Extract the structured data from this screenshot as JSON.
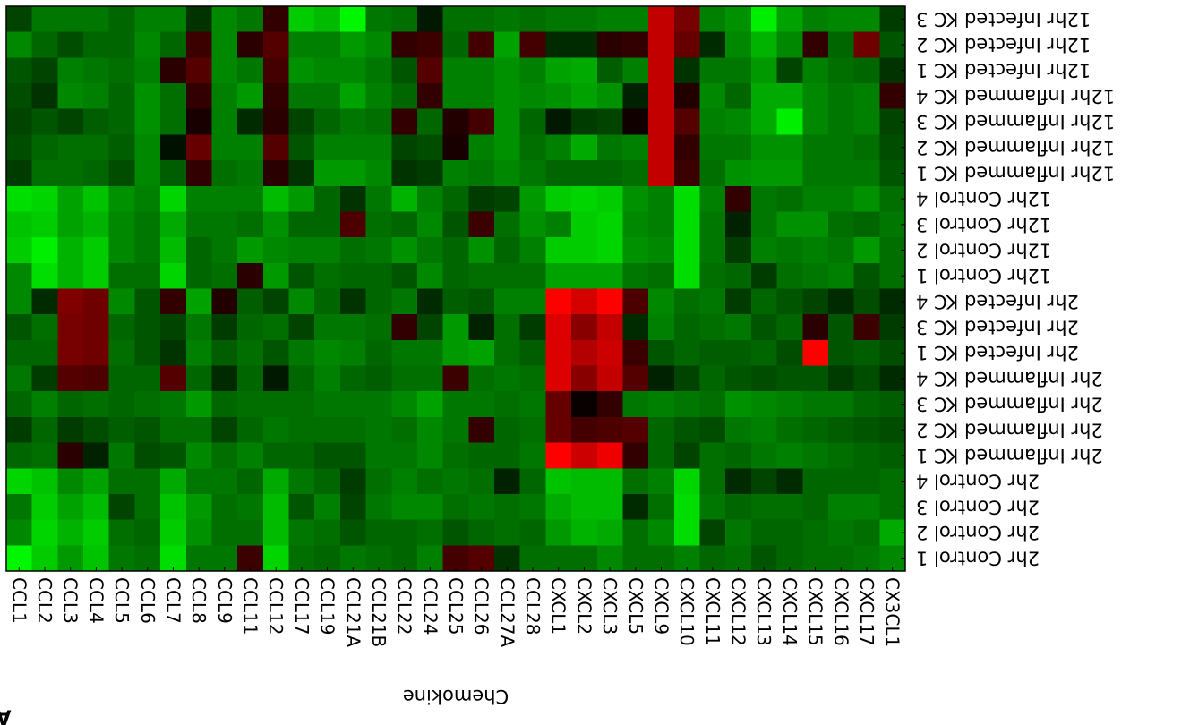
{
  "panel_label": "A",
  "chart_data": {
    "type": "heatmap",
    "title": "",
    "xlabel": "Chemokine",
    "ylabel": "",
    "orientation_note": "Figure is displayed rotated 180 degrees; labels read upside down.",
    "color_scale": {
      "low": "#00ff00",
      "mid": "#000000",
      "high": "#ff0000",
      "range": [
        -3,
        3
      ]
    },
    "columns": [
      "CCL1",
      "CCL2",
      "CCL3",
      "CCL4",
      "CCL5",
      "CCL6",
      "CCL7",
      "CCL8",
      "CCL9",
      "CCL11",
      "CCL12",
      "CCL17",
      "CCL19",
      "CCL21A",
      "CCL21B",
      "CCL22",
      "CCL24",
      "CCL25",
      "CCL26",
      "CCL27A",
      "CCL28",
      "CXCL1",
      "CXCL2",
      "CXCL3",
      "CXCL5",
      "CXCL9",
      "CXCL10",
      "CXCL11",
      "CXCL12",
      "CXCL13",
      "CXCL14",
      "CXCL15",
      "CXCL16",
      "CXCL17",
      "CX3CL1"
    ],
    "rows": [
      "12hr Infected KC 3",
      "12hr Infected KC 2",
      "12hr Infected KC 1",
      "12hr Inflammed KC 4",
      "12hr Inflammed KC 3",
      "12hr Inflammed KC 2",
      "12hr Inflammed KC 1",
      "12hr Control 4",
      "12hr Control 3",
      "12hr Control 2",
      "12hr Control 1",
      "2hr Infected KC 4",
      "2hr Infected KC 3",
      "2hr Infected KC 1",
      "2hr Inflammed KC 4",
      "2hr Inflammed KC 3",
      "2hr Inflammed KC 2",
      "2hr Inflammed KC 1",
      "2hr Control 4",
      "2hr Control 3",
      "2hr Control 2",
      "2hr Control 1"
    ],
    "values": [
      [
        -0.8,
        -1.4,
        -1.4,
        -1.4,
        -1.2,
        -1.5,
        -1.5,
        -0.6,
        -1.6,
        -1.4,
        0.6,
        -2.4,
        -2.2,
        -2.9,
        -1.4,
        -1.3,
        -0.3,
        -1.3,
        -1.3,
        -1.4,
        -1.3,
        -1.4,
        -1.4,
        -1.5,
        -1.5,
        2.3,
        1.4,
        -1.5,
        -1.7,
        -2.8,
        -1.9,
        -1.5,
        -1.6,
        -1.6,
        -0.7
      ],
      [
        -1.6,
        -1.2,
        -0.9,
        -1.2,
        -1.2,
        -1.6,
        -1.2,
        0.7,
        -1.6,
        0.5,
        1.0,
        -1.5,
        -1.5,
        -1.8,
        -1.6,
        0.6,
        0.7,
        -1.2,
        0.8,
        -1.9,
        0.8,
        -0.5,
        -0.5,
        0.5,
        0.6,
        2.3,
        1.2,
        -0.5,
        -1.6,
        -2.1,
        -1.6,
        0.6,
        -1.2,
        1.3,
        -1.0
      ],
      [
        -1.0,
        -0.8,
        -1.5,
        -1.4,
        -1.3,
        -1.5,
        0.5,
        1.0,
        -1.6,
        -1.4,
        0.8,
        -1.7,
        -1.6,
        -1.6,
        -1.4,
        -1.0,
        1.0,
        -1.5,
        -1.5,
        -1.7,
        -1.5,
        -1.9,
        -2.0,
        -1.1,
        -1.5,
        2.3,
        -0.6,
        -1.4,
        -1.4,
        -1.8,
        -0.8,
        -1.5,
        -1.3,
        -1.2,
        -0.6
      ],
      [
        -0.9,
        -0.6,
        -1.6,
        -1.5,
        -1.2,
        -1.7,
        -1.3,
        0.6,
        -1.5,
        -1.8,
        0.6,
        -1.4,
        -1.4,
        -1.9,
        -1.5,
        -1.2,
        0.6,
        -1.5,
        -1.5,
        -1.7,
        -1.6,
        -1.7,
        -1.9,
        -1.7,
        -0.4,
        2.3,
        0.4,
        -1.6,
        -1.2,
        -2.0,
        -2.0,
        -1.6,
        -1.4,
        -1.5,
        0.6
      ],
      [
        -0.8,
        -1.0,
        -0.8,
        -1.1,
        -1.2,
        -1.7,
        -1.3,
        0.3,
        -1.5,
        -0.5,
        0.5,
        -0.8,
        -1.2,
        -1.4,
        -1.3,
        0.6,
        -1.2,
        0.4,
        0.8,
        -1.7,
        -1.2,
        -0.3,
        -0.7,
        -0.8,
        0.2,
        2.3,
        1.0,
        -1.5,
        -1.6,
        -2.0,
        -2.8,
        -1.6,
        -1.4,
        -1.5,
        -0.8
      ],
      [
        -0.9,
        -1.2,
        -1.3,
        -1.3,
        -1.1,
        -1.6,
        -0.2,
        1.2,
        -1.5,
        -1.5,
        1.0,
        -1.0,
        -1.5,
        -1.5,
        -1.5,
        -0.8,
        -0.9,
        0.3,
        -1.5,
        -1.7,
        -1.3,
        -1.5,
        -2.0,
        -1.4,
        -1.5,
        2.3,
        0.6,
        -1.4,
        -1.4,
        -1.7,
        -1.7,
        -1.4,
        -1.4,
        -1.3,
        -0.9
      ],
      [
        -0.7,
        -1.3,
        -1.3,
        -1.2,
        -0.9,
        -1.6,
        -1.1,
        0.6,
        -1.3,
        -1.4,
        0.5,
        -0.6,
        -1.8,
        -1.8,
        -1.6,
        -0.6,
        -0.7,
        -1.5,
        -1.4,
        -1.6,
        -1.4,
        -1.2,
        -1.2,
        -1.2,
        -1.3,
        2.3,
        0.7,
        -1.3,
        -1.7,
        -1.8,
        -1.8,
        -1.4,
        -1.4,
        -1.4,
        -1.0
      ],
      [
        -2.6,
        -2.5,
        -1.9,
        -2.3,
        -1.7,
        -1.5,
        -2.5,
        -1.5,
        -1.5,
        -1.5,
        -2.2,
        -1.8,
        -1.2,
        -0.6,
        -1.4,
        -2.1,
        -1.5,
        -1.2,
        -0.7,
        -0.8,
        -1.8,
        -2.4,
        -2.5,
        -2.4,
        -1.7,
        -1.5,
        -2.6,
        -1.5,
        0.6,
        -1.4,
        -1.3,
        -1.5,
        -1.5,
        -1.7,
        -1.3
      ],
      [
        -2.3,
        -2.4,
        -1.9,
        -2.1,
        -1.6,
        -1.4,
        -2.0,
        -1.4,
        -1.4,
        -1.3,
        -1.7,
        -1.2,
        -1.2,
        0.9,
        -1.3,
        -1.2,
        -1.6,
        -1.0,
        0.7,
        -1.3,
        -1.7,
        -1.5,
        -2.4,
        -2.5,
        -1.6,
        -1.5,
        -2.6,
        -1.4,
        -0.4,
        -1.4,
        -1.7,
        -1.7,
        -1.3,
        -1.2,
        -1.4
      ],
      [
        -2.4,
        -2.8,
        -2.1,
        -2.4,
        -1.6,
        -1.4,
        -2.2,
        -1.2,
        -1.4,
        -1.8,
        -1.6,
        -1.5,
        -1.5,
        -1.3,
        -1.4,
        -1.7,
        -1.4,
        -1.2,
        -1.7,
        -1.2,
        -1.5,
        -2.4,
        -2.4,
        -2.5,
        -1.7,
        -1.6,
        -2.6,
        -1.4,
        -0.7,
        -1.5,
        -1.4,
        -1.5,
        -1.4,
        -1.8,
        -1.3
      ],
      [
        -1.6,
        -2.6,
        -2.1,
        -2.4,
        -1.3,
        -1.3,
        -2.5,
        -1.2,
        -1.3,
        0.5,
        -1.8,
        -1.0,
        -1.3,
        -1.2,
        -1.2,
        -1.0,
        -1.6,
        -1.2,
        -1.3,
        -1.3,
        -1.3,
        -1.9,
        -1.9,
        -1.9,
        -1.4,
        -1.3,
        -2.6,
        -1.3,
        -1.2,
        -0.7,
        -1.3,
        -1.4,
        -1.5,
        -1.0,
        -1.3
      ],
      [
        -1.6,
        -0.5,
        1.5,
        1.3,
        -1.6,
        -1.0,
        0.6,
        -1.9,
        0.4,
        -1.1,
        -0.8,
        -1.6,
        -1.2,
        -0.6,
        -1.2,
        -1.4,
        -0.5,
        -1.1,
        -1.0,
        -1.5,
        -1.5,
        3.2,
        2.5,
        3.7,
        0.9,
        -1.6,
        -1.3,
        -1.4,
        -0.7,
        -1.2,
        -1.0,
        -0.8,
        -0.5,
        -0.9,
        -0.5
      ],
      [
        -1.0,
        -1.3,
        1.4,
        1.3,
        -1.2,
        -1.0,
        -0.8,
        -1.4,
        -0.7,
        -1.2,
        -1.3,
        -0.8,
        -1.4,
        -1.4,
        -1.3,
        0.6,
        -0.8,
        -1.8,
        -0.4,
        -1.3,
        -0.7,
        2.6,
        1.6,
        2.3,
        -0.5,
        -1.5,
        -1.2,
        -1.3,
        -1.4,
        -1.0,
        -1.2,
        0.5,
        -1.0,
        0.7,
        -0.7
      ],
      [
        -1.2,
        -1.2,
        1.4,
        1.3,
        -1.3,
        -1.0,
        -0.6,
        -1.5,
        -1.1,
        -1.3,
        -1.0,
        -1.4,
        -1.6,
        -1.5,
        -1.2,
        -1.4,
        -1.4,
        -1.8,
        -1.9,
        -1.3,
        -1.1,
        2.6,
        2.1,
        2.4,
        0.7,
        -1.0,
        -1.2,
        -1.1,
        -1.1,
        -1.2,
        -0.9,
        3.8,
        -1.0,
        -1.1,
        -0.9
      ],
      [
        -1.4,
        -0.7,
        1.0,
        0.9,
        -1.2,
        -1.2,
        1.0,
        -1.2,
        -0.5,
        -1.2,
        -0.3,
        -1.2,
        -1.5,
        -1.2,
        -1.1,
        -1.3,
        -1.3,
        0.7,
        -1.3,
        -1.4,
        -1.3,
        2.6,
        1.6,
        2.3,
        1.0,
        -0.4,
        -0.8,
        -1.2,
        -1.0,
        -0.9,
        -1.0,
        -1.0,
        -0.7,
        -0.9,
        -0.5
      ],
      [
        -1.2,
        -1.5,
        -1.2,
        -1.3,
        -1.2,
        -1.3,
        -1.4,
        -1.8,
        -1.2,
        -1.3,
        -1.3,
        -1.3,
        -1.4,
        -1.4,
        -1.4,
        -1.6,
        -1.9,
        -1.4,
        -1.4,
        -1.3,
        -1.4,
        1.2,
        0.1,
        0.6,
        -1.4,
        -1.5,
        -1.4,
        -1.3,
        -1.7,
        -1.6,
        -1.5,
        -1.4,
        -1.4,
        -1.2,
        -1.1
      ],
      [
        -0.7,
        -1.2,
        -0.7,
        -0.9,
        -1.1,
        -1.0,
        -1.3,
        -1.3,
        -0.8,
        -1.2,
        -1.4,
        -1.3,
        -1.3,
        -1.3,
        -1.4,
        -1.3,
        -1.6,
        -1.4,
        0.6,
        -1.2,
        -1.3,
        1.2,
        0.8,
        0.9,
        1.0,
        -1.2,
        -1.0,
        -0.9,
        -1.4,
        -1.5,
        -1.3,
        -1.2,
        -1.1,
        -1.0,
        -0.9
      ],
      [
        -1.2,
        -1.3,
        0.5,
        -0.4,
        -1.4,
        -0.9,
        -1.0,
        -1.6,
        -1.3,
        -1.5,
        -1.2,
        -1.2,
        -1.0,
        -1.0,
        -1.4,
        -1.4,
        -1.6,
        -1.3,
        -1.2,
        -1.2,
        -1.4,
        3.0,
        2.4,
        2.8,
        0.6,
        -1.2,
        -0.8,
        -1.3,
        -1.2,
        -1.4,
        -1.5,
        -1.4,
        -1.3,
        -1.2,
        -1.1
      ],
      [
        -2.5,
        -2.3,
        -1.6,
        -1.9,
        -1.3,
        -1.3,
        -2.0,
        -1.4,
        -1.4,
        -1.2,
        -2.0,
        -1.4,
        -1.2,
        -0.7,
        -1.3,
        -1.5,
        -1.3,
        -1.4,
        -1.3,
        -0.4,
        -1.2,
        -2.3,
        -2.2,
        -2.2,
        -1.3,
        -1.5,
        -2.5,
        -1.3,
        -0.5,
        -0.8,
        -0.5,
        -1.2,
        -1.2,
        -1.2,
        -1.3
      ],
      [
        -1.4,
        -2.4,
        -1.9,
        -2.2,
        -0.8,
        -1.3,
        -2.3,
        -1.8,
        -1.3,
        -1.4,
        -2.2,
        -1.0,
        -1.5,
        -0.8,
        -1.4,
        -1.6,
        -1.6,
        -1.3,
        -1.4,
        -1.3,
        -1.4,
        -2.0,
        -2.2,
        -2.2,
        -0.5,
        -1.3,
        -2.6,
        -1.4,
        -1.2,
        -1.3,
        -1.3,
        -1.2,
        -1.5,
        -1.5,
        -1.3
      ],
      [
        -1.6,
        -2.5,
        -2.1,
        -2.4,
        -1.3,
        -1.2,
        -2.4,
        -1.7,
        -1.3,
        -1.3,
        -2.2,
        -1.4,
        -1.3,
        -1.0,
        -1.2,
        -1.2,
        -1.3,
        -1.0,
        -1.2,
        -1.3,
        -1.2,
        -1.8,
        -2.1,
        -2.0,
        -1.3,
        -1.6,
        -2.6,
        -0.8,
        -1.4,
        -1.2,
        -1.2,
        -1.3,
        -1.4,
        -1.3,
        -2.0
      ],
      [
        -2.9,
        -2.4,
        -1.8,
        -2.3,
        -1.4,
        -1.3,
        -2.6,
        -1.4,
        -1.4,
        0.7,
        -2.5,
        -1.3,
        -1.2,
        -1.4,
        -1.3,
        -1.2,
        -1.5,
        0.8,
        1.0,
        -0.6,
        -1.3,
        -1.3,
        -1.3,
        -1.6,
        -1.3,
        -1.3,
        -1.5,
        -1.2,
        -1.3,
        -1.0,
        -1.2,
        -1.3,
        -1.3,
        -1.4,
        -1.6
      ]
    ]
  }
}
